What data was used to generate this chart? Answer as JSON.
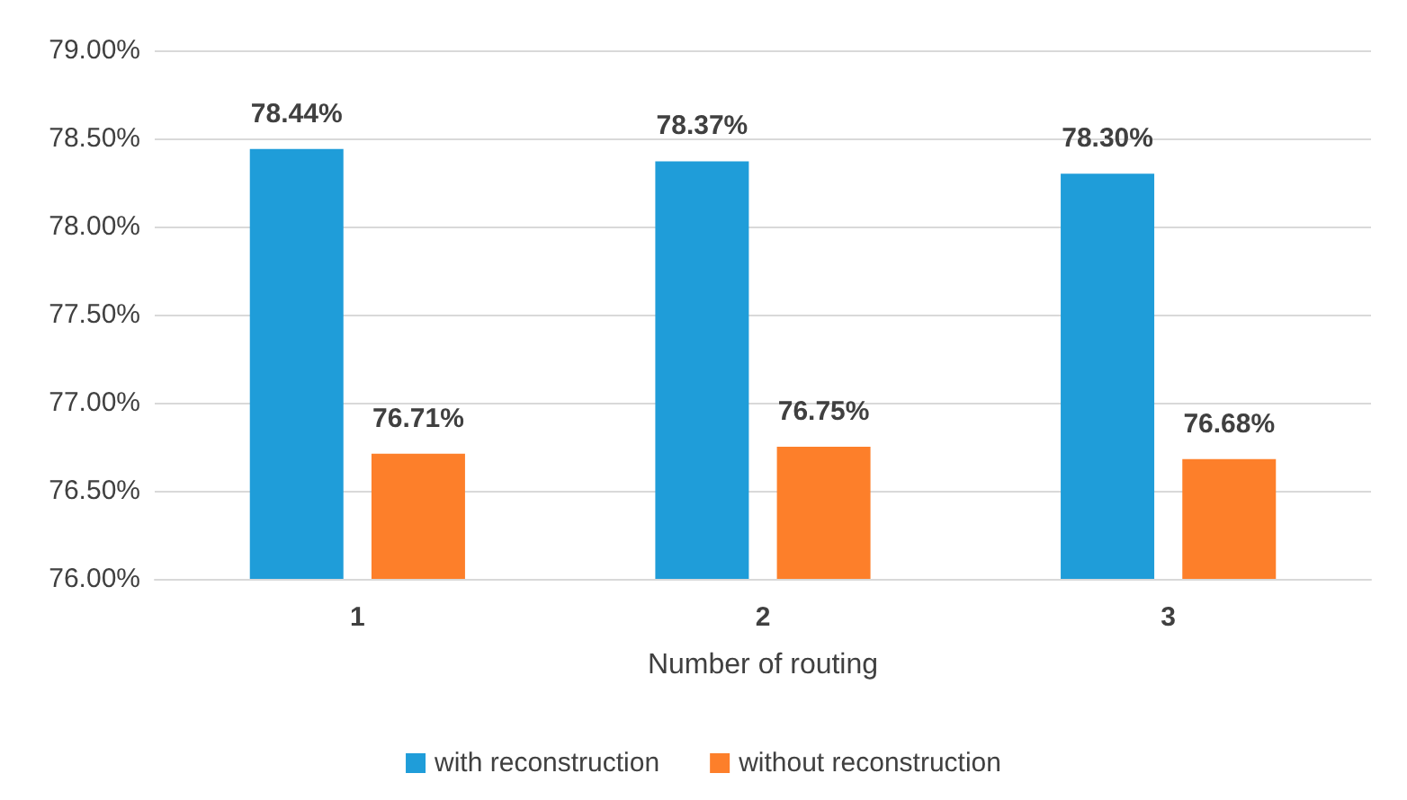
{
  "chart_data": {
    "type": "bar",
    "xlabel": "Number of routing",
    "categories": [
      "1",
      "2",
      "3"
    ],
    "series": [
      {
        "name": "with reconstruction",
        "color": "#1f9dd9",
        "values": [
          78.44,
          78.37,
          78.3
        ],
        "value_labels": [
          "78.44%",
          "78.37%",
          "78.30%"
        ]
      },
      {
        "name": "without reconstruction",
        "color": "#fd7f2a",
        "values": [
          76.71,
          76.75,
          76.68
        ],
        "value_labels": [
          "76.71%",
          "76.75%",
          "76.68%"
        ]
      }
    ],
    "ylim": [
      76,
      79
    ],
    "yticks": [
      {
        "value": 76,
        "label": "76.00%"
      },
      {
        "value": 76.5,
        "label": "76.50%"
      },
      {
        "value": 77,
        "label": "77.00%"
      },
      {
        "value": 77.5,
        "label": "77.50%"
      },
      {
        "value": 78,
        "label": "78.00%"
      },
      {
        "value": 78.5,
        "label": "78.50%"
      },
      {
        "value": 79,
        "label": "79.00%"
      }
    ],
    "grid": "y",
    "legend": "bottom"
  }
}
